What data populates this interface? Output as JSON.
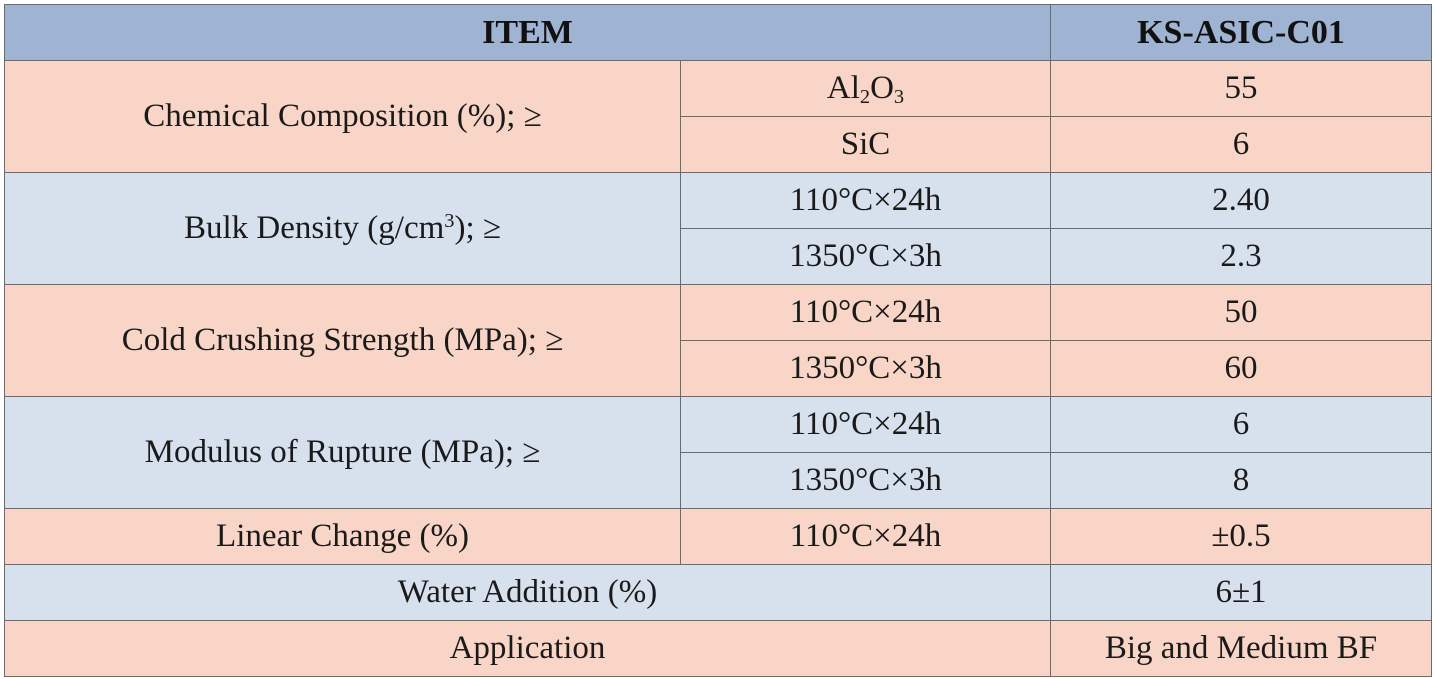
{
  "table": {
    "header": {
      "item": "ITEM",
      "product": "KS-ASIC-C01"
    },
    "chemical_composition": {
      "label": "Chemical Composition (%); ≥",
      "rows": [
        {
          "condition_prefix": "Al",
          "condition_sub1": "2",
          "condition_mid": "O",
          "condition_sub2": "3",
          "value": "55"
        },
        {
          "condition": "SiC",
          "value": "6"
        }
      ]
    },
    "bulk_density": {
      "label_prefix": "Bulk Density (g/cm",
      "label_sup": "3",
      "label_suffix": "); ≥",
      "rows": [
        {
          "condition": "110°C×24h",
          "value": "2.40"
        },
        {
          "condition": "1350°C×3h",
          "value": "2.3"
        }
      ]
    },
    "cold_crushing_strength": {
      "label": "Cold Crushing Strength (MPa); ≥",
      "rows": [
        {
          "condition": "110°C×24h",
          "value": "50"
        },
        {
          "condition": "1350°C×3h",
          "value": "60"
        }
      ]
    },
    "modulus_of_rupture": {
      "label": "Modulus of Rupture (MPa); ≥",
      "rows": [
        {
          "condition": "110°C×24h",
          "value": "6"
        },
        {
          "condition": "1350°C×3h",
          "value": "8"
        }
      ]
    },
    "linear_change": {
      "label": "Linear Change (%)",
      "condition": "110°C×24h",
      "value": "±0.5"
    },
    "water_addition": {
      "label": "Water Addition (%)",
      "value": "6±1"
    },
    "application": {
      "label": "Application",
      "value": "Big and Medium BF"
    }
  }
}
